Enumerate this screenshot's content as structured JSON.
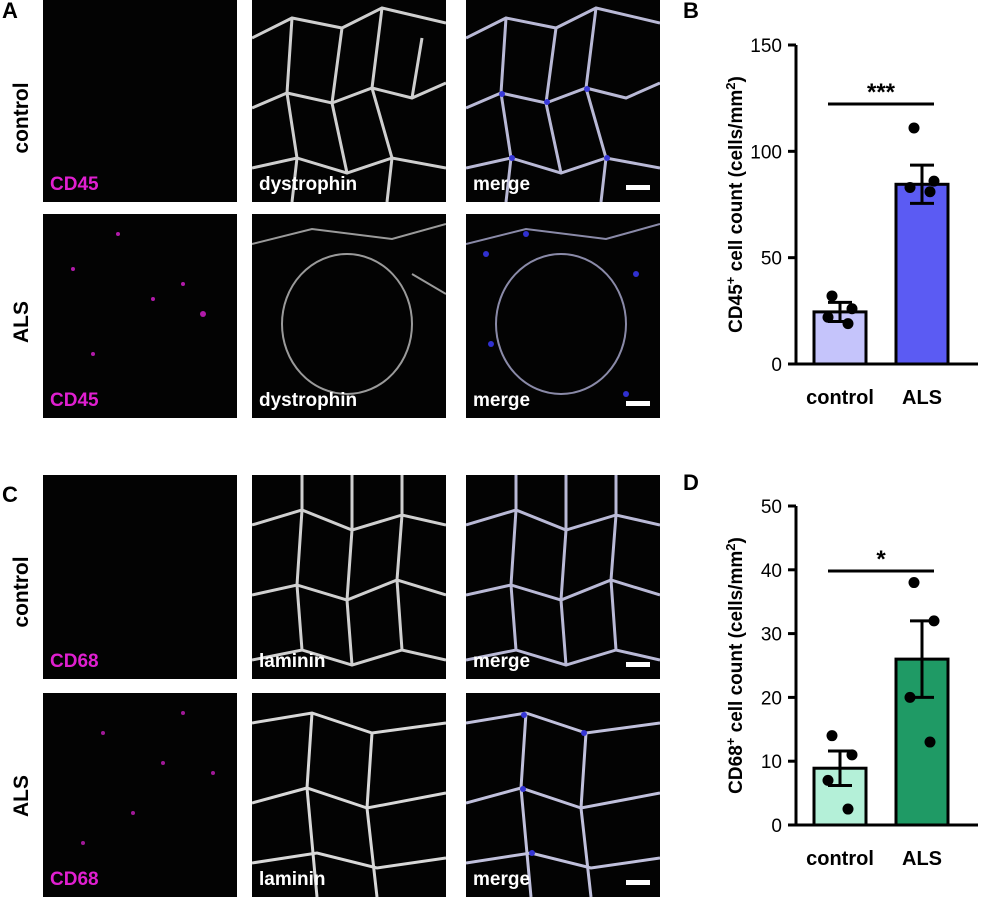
{
  "panel_letters": {
    "a": "A",
    "b": "B",
    "c": "C",
    "d": "D"
  },
  "grid_A": {
    "rows": [
      "control",
      "ALS"
    ],
    "channels": [
      "CD45",
      "dystrophin",
      "merge"
    ],
    "channel_colors": [
      "#e01fd0",
      "#ffffff",
      "#ffffff"
    ]
  },
  "grid_C": {
    "rows": [
      "control",
      "ALS"
    ],
    "channels": [
      "CD68",
      "laminin",
      "merge"
    ],
    "channel_colors": [
      "#e01fd0",
      "#ffffff",
      "#ffffff"
    ]
  },
  "chart_data": [
    {
      "panel": "B",
      "type": "bar",
      "categories": [
        "control",
        "ALS"
      ],
      "values": [
        24.5,
        84.5
      ],
      "sem": [
        4.5,
        9.0
      ],
      "points": [
        [
          32,
          26,
          22,
          19
        ],
        [
          111,
          86,
          83,
          81
        ]
      ],
      "ylabel_prefix": "CD45",
      "ylabel_sup": "+",
      "ylabel_suffix": " cell count (cells/mm",
      "ylabel_unit_sup": "2",
      "ylabel_end": ")",
      "ylim": [
        0,
        150
      ],
      "yticks": [
        0,
        50,
        100,
        150
      ],
      "significance": "***",
      "colors": [
        "#c5c4fb",
        "#5b5bf3"
      ]
    },
    {
      "panel": "D",
      "type": "bar",
      "categories": [
        "control",
        "ALS"
      ],
      "values": [
        8.9,
        26.0
      ],
      "sem": [
        2.7,
        6.0
      ],
      "points": [
        [
          14,
          11,
          7,
          2.5
        ],
        [
          38,
          32,
          20,
          13
        ]
      ],
      "ylabel_prefix": "CD68",
      "ylabel_sup": "+",
      "ylabel_suffix": " cell count (cells/mm",
      "ylabel_unit_sup": "2",
      "ylabel_end": ")",
      "ylim": [
        0,
        50
      ],
      "yticks": [
        0,
        10,
        20,
        30,
        40,
        50
      ],
      "significance": "*",
      "colors": [
        "#b4f0d8",
        "#1f9a65"
      ]
    }
  ]
}
